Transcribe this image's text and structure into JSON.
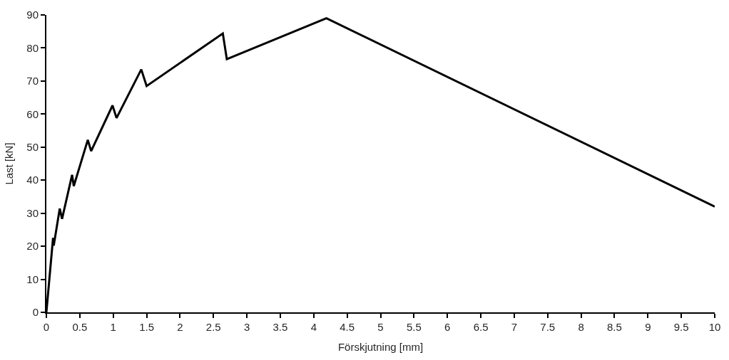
{
  "chart_data": {
    "type": "line",
    "xlabel": "Förskjutning [mm]",
    "ylabel": "Last [kN]",
    "x": [
      0,
      0.1,
      0.11,
      0.2,
      0.235,
      0.385,
      0.41,
      0.62,
      0.67,
      0.99,
      1.05,
      1.42,
      1.5,
      2.64,
      2.7,
      4.19,
      10
    ],
    "series": [
      {
        "color": "#000000",
        "values": [
          0,
          22.5,
          20.2,
          31.4,
          28.3,
          41.6,
          38.2,
          52.2,
          48.8,
          62.6,
          58.8,
          73.5,
          68.5,
          84.4,
          76.6,
          89,
          32
        ]
      }
    ],
    "xlim": [
      0,
      10
    ],
    "ylim": [
      0,
      90
    ],
    "xticks": [
      0,
      0.5,
      1,
      1.5,
      2,
      2.5,
      3,
      3.5,
      4,
      4.5,
      5,
      5.5,
      6,
      6.5,
      7,
      7.5,
      8,
      8.5,
      9,
      9.5,
      10
    ],
    "yticks": [
      0,
      10,
      20,
      30,
      40,
      50,
      60,
      70,
      80,
      90
    ],
    "legend": false,
    "marker": "none",
    "line_style": "solid"
  }
}
